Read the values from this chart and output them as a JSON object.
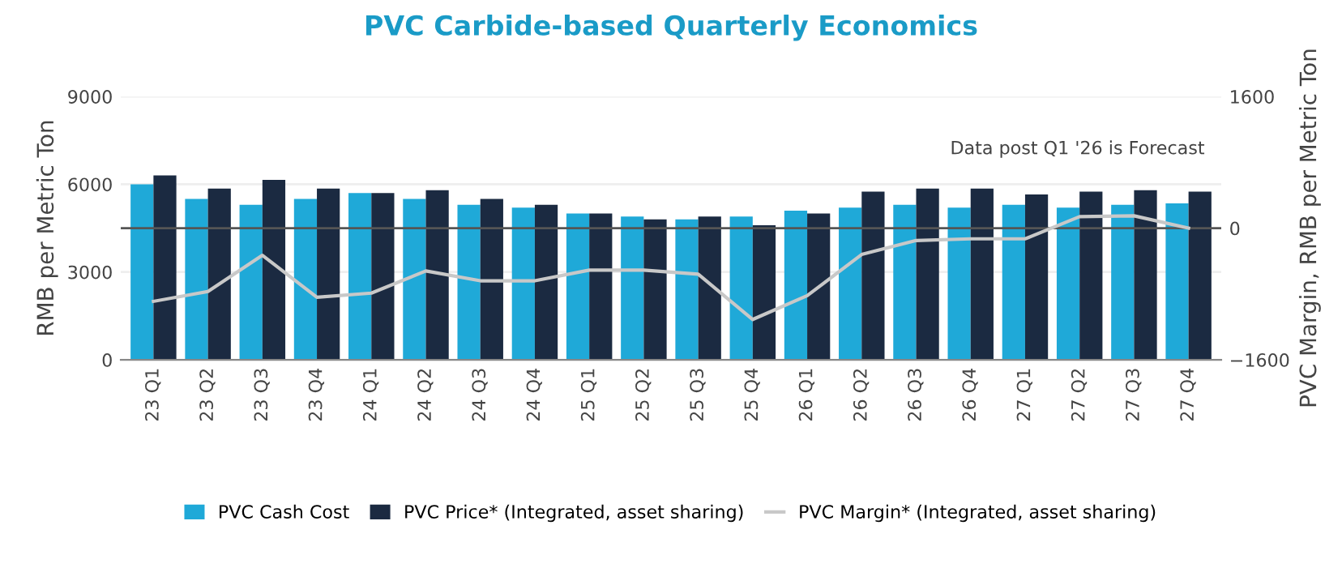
{
  "chart_data": {
    "type": "bar",
    "title": "PVC Carbide-based Quarterly Economics",
    "categories": [
      "23 Q1",
      "23 Q2",
      "23 Q3",
      "23 Q4",
      "24 Q1",
      "24 Q2",
      "24 Q3",
      "24 Q4",
      "25 Q1",
      "25 Q2",
      "25 Q3",
      "25 Q4",
      "26 Q1",
      "26 Q2",
      "26 Q3",
      "26 Q4",
      "27 Q1",
      "27 Q2",
      "27 Q3",
      "27 Q4"
    ],
    "series": [
      {
        "name": "PVC Cash Cost",
        "color": "#1fa9d8",
        "values": [
          6000,
          5500,
          5300,
          5500,
          5700,
          5500,
          5300,
          5200,
          5000,
          4900,
          4800,
          4900,
          5100,
          5200,
          5300,
          5200,
          5300,
          5200,
          5300,
          5350
        ]
      },
      {
        "name": "PVC Price* (Integrated, asset sharing)",
        "color": "#1b2a41",
        "values": [
          6300,
          5850,
          6150,
          5850,
          5700,
          5800,
          5500,
          5300,
          5000,
          4800,
          4900,
          4600,
          5000,
          5750,
          5850,
          5850,
          5650,
          5750,
          5800,
          5750
        ]
      },
      {
        "name": "PVC Margin* (Integrated, asset sharing)",
        "type": "line",
        "axis": "y2",
        "color": "#c8c8c8",
        "values": [
          -890,
          -770,
          -330,
          -840,
          -790,
          -520,
          -640,
          -640,
          -510,
          -510,
          -560,
          -1110,
          -820,
          -320,
          -150,
          -130,
          -130,
          140,
          150,
          0
        ]
      }
    ],
    "ylabel": "RMB per Metric Ton",
    "y2label": "PVC Margin, RMB per Metric Ton",
    "ylim": [
      0,
      9000
    ],
    "yticks": [
      0,
      3000,
      6000,
      9000
    ],
    "y2lim": [
      -1600,
      1600
    ],
    "y2ticks": [
      -1600,
      0,
      1600
    ],
    "ref_lines": [
      {
        "axis": "y2",
        "value": 0,
        "color": "#555555"
      }
    ],
    "annotations": [
      "Data post Q1 '26 is Forecast"
    ],
    "grid": "y",
    "legend": "bottom"
  }
}
